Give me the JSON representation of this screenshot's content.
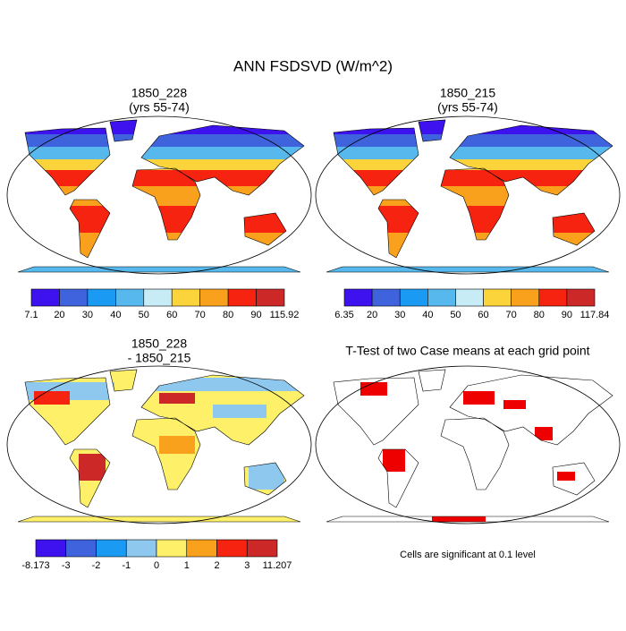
{
  "title": "ANN FSDSVD (W/m^2)",
  "panels": [
    {
      "title": "1850_228",
      "subtitle": "(yrs 55-74)",
      "colorbar": {
        "labels": [
          "7.1",
          "20",
          "30",
          "40",
          "50",
          "60",
          "70",
          "80",
          "90",
          "115.92"
        ],
        "colors": [
          "#3d12ee",
          "#3f63dc",
          "#1a9af3",
          "#57b8ed",
          "#c8ecf5",
          "#fad43a",
          "#f9a11c",
          "#f5230f",
          "#cc2828"
        ]
      }
    },
    {
      "title": "1850_215",
      "subtitle": "(yrs 55-74)",
      "colorbar": {
        "labels": [
          "6.35",
          "20",
          "30",
          "40",
          "50",
          "60",
          "70",
          "80",
          "90",
          "117.84"
        ],
        "colors": [
          "#3d12ee",
          "#3f63dc",
          "#1a9af3",
          "#57b8ed",
          "#c8ecf5",
          "#fad43a",
          "#f9a11c",
          "#f5230f",
          "#cc2828"
        ]
      }
    },
    {
      "title": "1850_228",
      "subtitle": "- 1850_215",
      "colorbar": {
        "labels": [
          "-8.173",
          "-3",
          "-2",
          "-1",
          "0",
          "1",
          "2",
          "3",
          "11.207"
        ],
        "colors": [
          "#3d12ee",
          "#3f63dc",
          "#1a9af3",
          "#8fc8ee",
          "#fff06a",
          "#f9a11c",
          "#f5230f",
          "#cc2828"
        ]
      }
    }
  ],
  "ttest": {
    "title": "T-Test of two Case means at each grid point",
    "note": "Cells are significant at 0.1 level"
  }
}
